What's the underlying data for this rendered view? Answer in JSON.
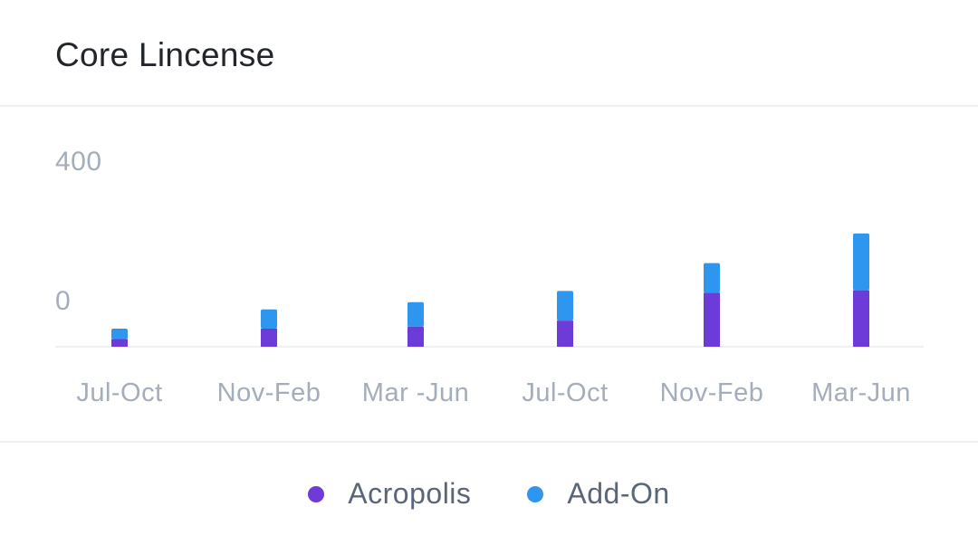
{
  "card": {
    "title": "Core Lincense"
  },
  "chart_data": {
    "type": "bar",
    "stacked": true,
    "title": "Core Lincense",
    "categories": [
      "Jul-Oct",
      "Nov-Feb",
      "Mar -Jun",
      "Jul-Oct",
      "Nov-Feb",
      "Mar-Jun"
    ],
    "series": [
      {
        "name": "Acropolis",
        "color": "#6c3bd8",
        "values": [
          22,
          52,
          58,
          75,
          155,
          162
        ]
      },
      {
        "name": "Add-On",
        "color": "#2f96ef",
        "values": [
          30,
          55,
          70,
          85,
          85,
          163
        ]
      }
    ],
    "y_ticks": [
      "400",
      "0"
    ],
    "ylim": [
      0,
      400
    ],
    "grid": false,
    "legend_position": "bottom-center"
  }
}
